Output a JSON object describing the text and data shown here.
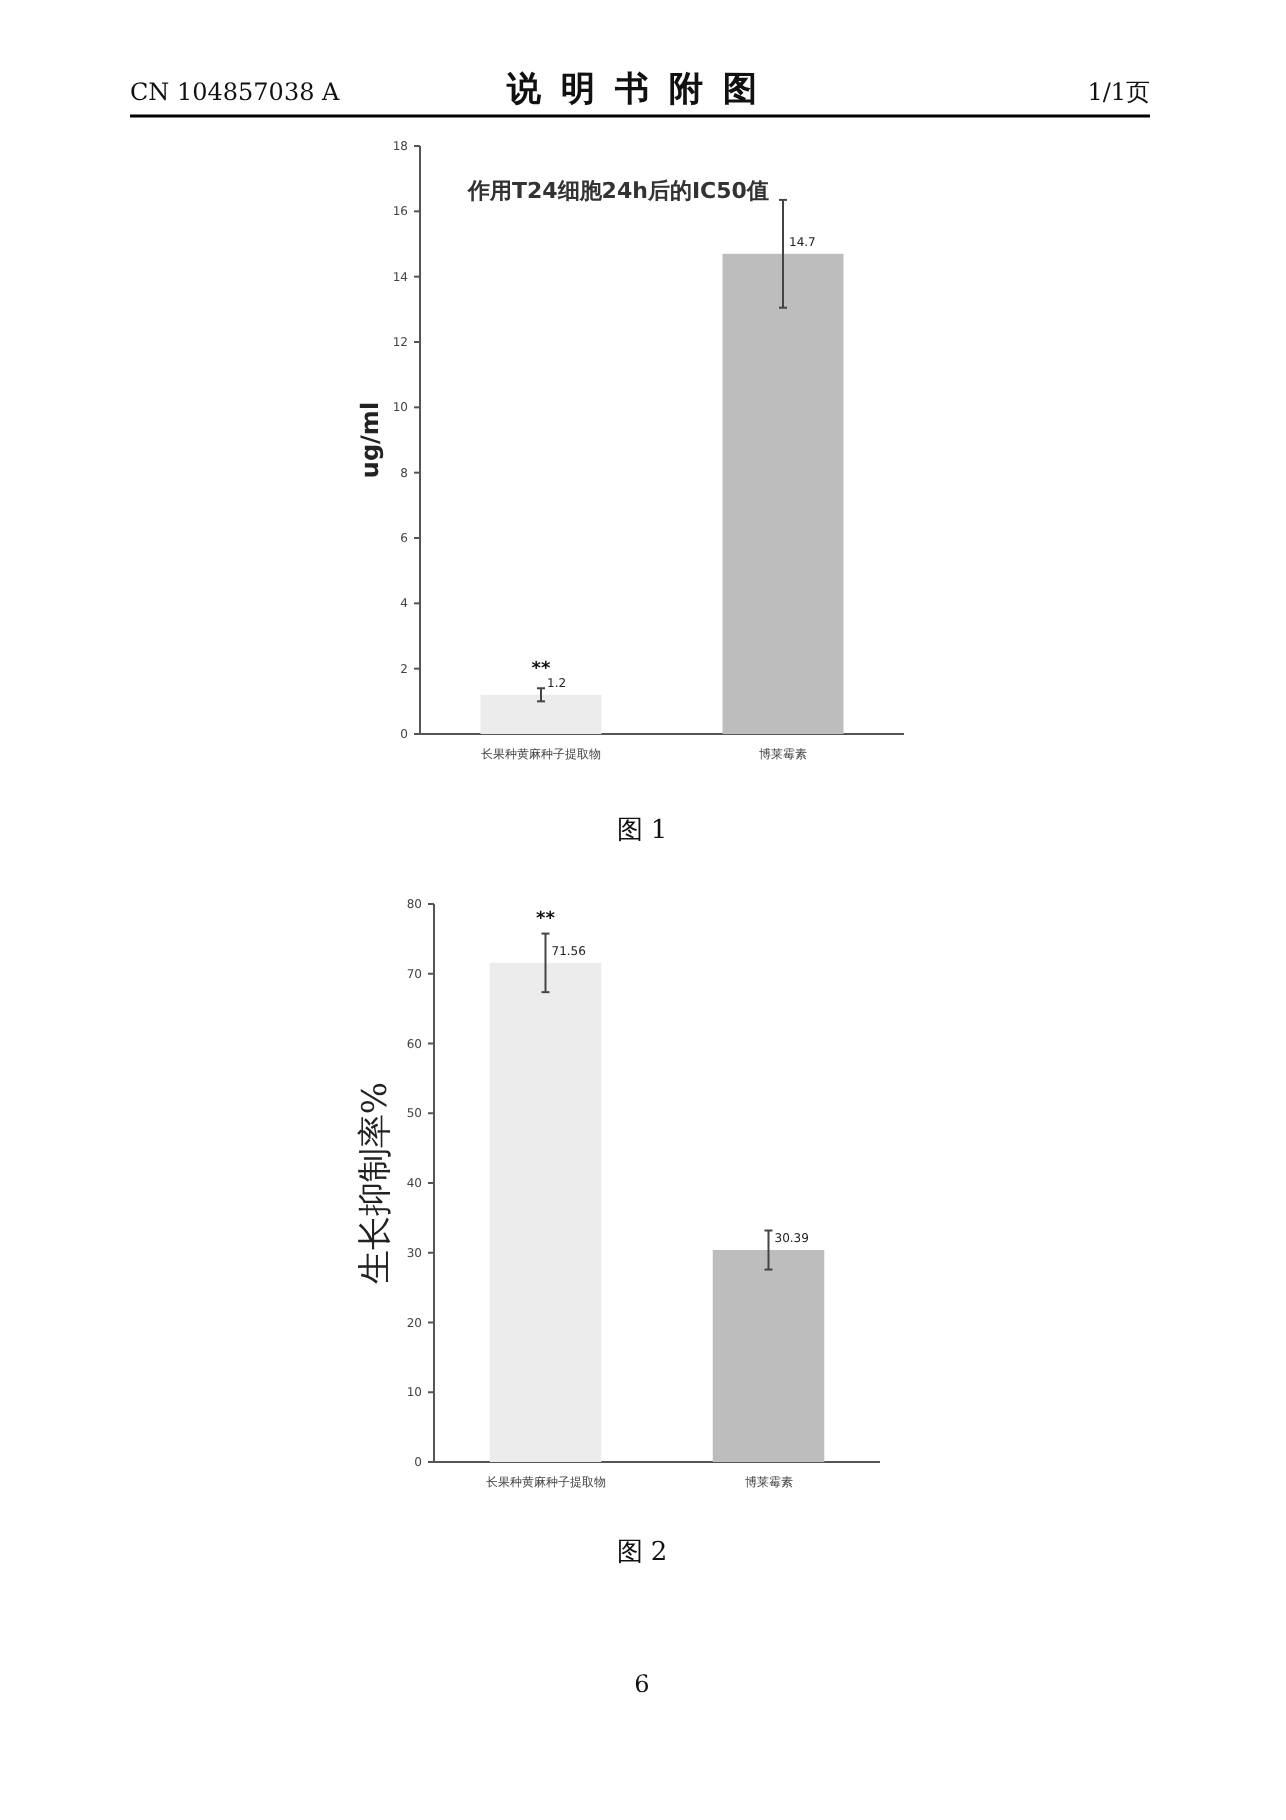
{
  "chart_data": [
    {
      "type": "bar",
      "title": "作用T24细胞24h后的IC50值",
      "ylabel": "ug/ml",
      "categories": [
        "长果种黄麻种子提取物",
        "博莱霉素"
      ],
      "values": [
        1.2,
        14.7
      ],
      "errors": [
        0.2,
        1.65
      ],
      "colors": [
        "#ececec",
        "#bdbdbd"
      ],
      "ylim": [
        0,
        18
      ],
      "yticks": [
        0,
        2,
        4,
        6,
        8,
        10,
        12,
        14,
        16,
        18
      ],
      "data_labels": true,
      "annotations": [
        "CN 104857038 A",
        "说明书附图",
        "1/1页",
        "图 1",
        {
          "text": "**",
          "x": "长果种黄麻种子提取物",
          "y": 1.6
        }
      ]
    },
    {
      "type": "bar",
      "ylabel": "生长抑制率%",
      "categories": [
        "长果种黄麻种子提取物",
        "博莱霉素"
      ],
      "values": [
        71.56,
        30.39
      ],
      "errors": [
        4.2,
        2.8
      ],
      "colors": [
        "#ececec",
        "#bdbdbd"
      ],
      "ylim": [
        0,
        80
      ],
      "yticks": [
        0,
        10,
        20,
        30,
        40,
        50,
        60,
        70,
        80
      ],
      "data_labels": true,
      "annotations": [
        "图 2",
        "6",
        {
          "text": "**",
          "x": "长果种黄麻种子提取物",
          "y": 76
        }
      ]
    }
  ]
}
